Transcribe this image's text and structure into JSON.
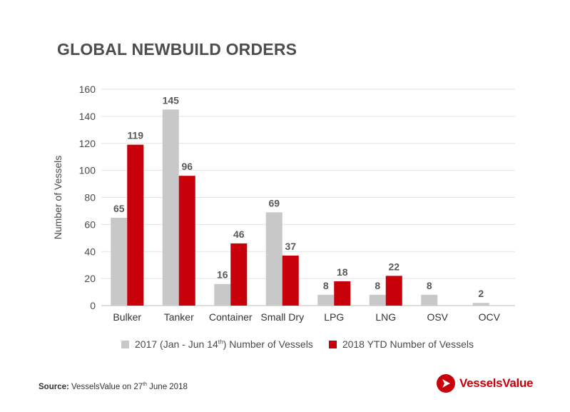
{
  "chart_data": {
    "type": "bar",
    "title": "GLOBAL NEWBUILD ORDERS",
    "xlabel": "",
    "ylabel": "Number of Vessels",
    "ylim": [
      0,
      160
    ],
    "yticks": [
      0,
      20,
      40,
      60,
      80,
      100,
      120,
      140,
      160
    ],
    "grid": true,
    "legend_position": "bottom",
    "categories": [
      "Bulker",
      "Tanker",
      "Container",
      "Small Dry",
      "LPG",
      "LNG",
      "OSV",
      "OCV"
    ],
    "series": [
      {
        "name": "2017 (Jan - Jun 14th) Number of Vessels",
        "color": "#c8c8c8",
        "values": [
          65,
          145,
          16,
          69,
          8,
          8,
          8,
          2
        ]
      },
      {
        "name": "2018 YTD Number of Vessels",
        "color": "#c8000a",
        "values": [
          119,
          96,
          46,
          37,
          18,
          22,
          null,
          null
        ]
      }
    ]
  },
  "legend": {
    "s1_pre": "2017 (Jan - Jun 14",
    "s1_sup": "th",
    "s1_post": ") Number of Vessels",
    "s2": "2018 YTD Number of Vessels"
  },
  "source": {
    "label": "Source:",
    "text_pre": " VesselsValue on 27",
    "text_sup": "th",
    "text_post": " June 2018"
  },
  "logo": {
    "text": "VesselsValue",
    "icon": "vesselsvalue-logo-icon",
    "color": "#c8000a"
  }
}
